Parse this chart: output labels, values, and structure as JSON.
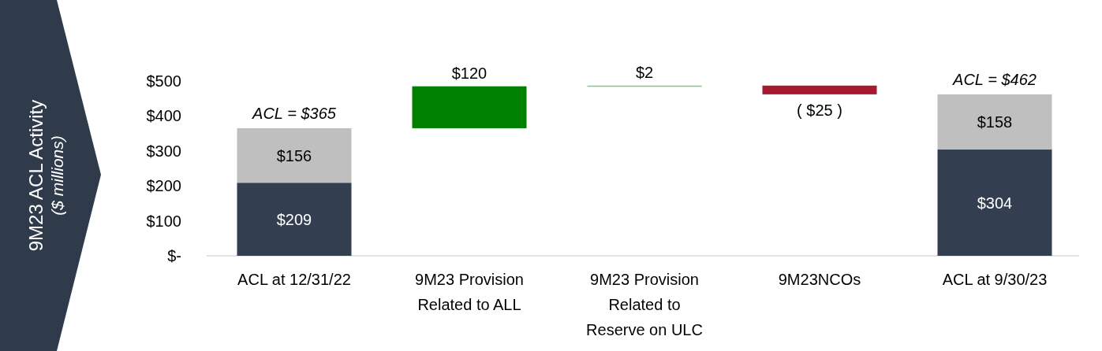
{
  "chart_data": {
    "type": "bar",
    "stacked": true,
    "ylabel": "9M23 ACL Activity\n($ millions)",
    "categories": [
      "ACL at 12/31/22",
      "9M23 Provision Related to ALL",
      "9M23 Provision Related to Reserve on ULC",
      "9M23NCOs",
      "ACL at 9/30/23"
    ],
    "series": [
      {
        "color": "#333f50",
        "values": [
          209,
          null,
          null,
          null,
          304
        ],
        "value_labels": [
          "$209",
          null,
          null,
          null,
          "$304"
        ]
      },
      {
        "color": "#bfbfbf",
        "values": [
          156,
          null,
          null,
          null,
          158
        ],
        "value_labels": [
          "$156",
          null,
          null,
          null,
          "$158"
        ]
      },
      {
        "colors": [
          null,
          "#008000",
          "#7fc97f",
          "#a6192e",
          null
        ],
        "base": [
          null,
          365,
          485,
          487,
          null
        ],
        "values": [
          null,
          120,
          2,
          -25,
          null
        ],
        "value_labels": [
          null,
          "$120",
          "$2",
          "( $25 )",
          null
        ]
      }
    ],
    "totals": [
      "ACL = $365",
      null,
      null,
      null,
      "ACL = $462"
    ],
    "ylim": [
      0,
      500
    ],
    "yticks": [
      {
        "value": 0,
        "label": "$-"
      },
      {
        "value": 100,
        "label": "$100"
      },
      {
        "value": 200,
        "label": "$200"
      },
      {
        "value": 300,
        "label": "$300"
      },
      {
        "value": 400,
        "label": "$400"
      },
      {
        "value": 500,
        "label": "$500"
      }
    ],
    "grid": false
  }
}
